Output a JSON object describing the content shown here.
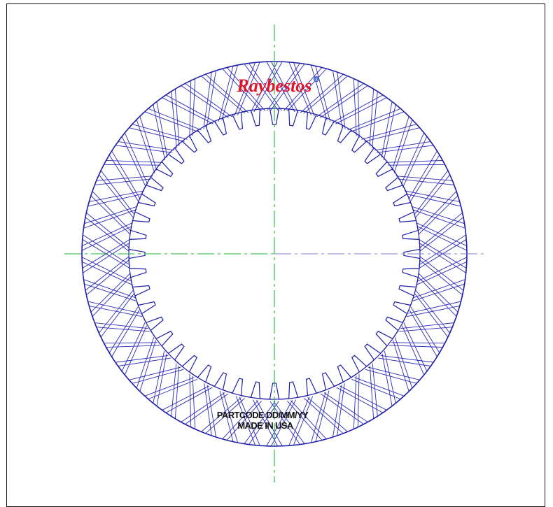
{
  "drawing": {
    "logo": {
      "text": "Raybestos",
      "mark": "®",
      "color": "#e0142a"
    },
    "stamp": {
      "line1": "PARTCODE DD/MM/YY",
      "line2": "MADE IN USA",
      "color": "#111111"
    },
    "spline_teeth": 48,
    "groove_segments": 54,
    "colors": {
      "outline": "#1c1ca8",
      "groove": "#2b2bb8",
      "centerline_vertical": "#1fb53a",
      "centerline_horizontal_inner": "#1fb53a",
      "centerline_horizontal_outer": "#8a7fd0"
    }
  }
}
